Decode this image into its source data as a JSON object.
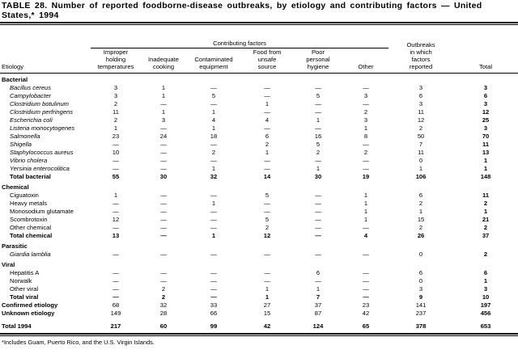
{
  "title": "TABLE 28. Number of reported foodborne-disease outbreaks, by etiology and contributing factors — United States,* 1994",
  "header": {
    "group_label": "Contributing factors",
    "etiology": "Etiology",
    "columns": [
      [
        "Improper",
        "holding",
        "temperatures"
      ],
      [
        "",
        "Inadequate",
        "cooking"
      ],
      [
        "",
        "Contaminated",
        "equipment"
      ],
      [
        "Food from",
        "unsafe",
        "source"
      ],
      [
        "Poor",
        "personal",
        "hygiene"
      ],
      [
        "",
        "",
        "Other"
      ],
      [
        "in which",
        "factors",
        "reported"
      ],
      [
        "",
        "",
        "Total"
      ]
    ],
    "outbreaks_top": "Outbreaks"
  },
  "rows": [
    {
      "label": "Bacterial",
      "type": "section",
      "values": []
    },
    {
      "label": "Bacillus cereus",
      "type": "italic",
      "values": [
        "3",
        "1",
        "—",
        "—",
        "—",
        "—",
        "3",
        "3"
      ]
    },
    {
      "label": "Campylobacter",
      "type": "italic",
      "values": [
        "3",
        "1",
        "5",
        "—",
        "5",
        "3",
        "6",
        "6"
      ]
    },
    {
      "label": "Clostridium botulinum",
      "type": "italic",
      "values": [
        "2",
        "—",
        "—",
        "1",
        "—",
        "—",
        "3",
        "3"
      ]
    },
    {
      "label": "Clostridium perfringens",
      "type": "italic",
      "values": [
        "11",
        "1",
        "1",
        "—",
        "—",
        "2",
        "11",
        "12"
      ]
    },
    {
      "label": "Escherichia coli",
      "type": "italic",
      "values": [
        "2",
        "3",
        "4",
        "4",
        "1",
        "3",
        "12",
        "25"
      ]
    },
    {
      "label": "Listeria monocytogenes",
      "type": "italic",
      "values": [
        "1",
        "—",
        "1",
        "—",
        "—",
        "1",
        "2",
        "3"
      ]
    },
    {
      "label": "Salmonella",
      "type": "italic",
      "values": [
        "23",
        "24",
        "18",
        "6",
        "16",
        "8",
        "50",
        "70"
      ]
    },
    {
      "label": "Shigella",
      "type": "italic",
      "values": [
        "—",
        "—",
        "—",
        "2",
        "5",
        "—",
        "7",
        "11"
      ]
    },
    {
      "label": "Staphylococcus aureus",
      "type": "italic",
      "values": [
        "10",
        "—",
        "2",
        "1",
        "2",
        "2",
        "11",
        "13"
      ]
    },
    {
      "label": "Vibrio cholera",
      "type": "italic",
      "values": [
        "—",
        "—",
        "—",
        "—",
        "—",
        "—",
        "0",
        "1"
      ]
    },
    {
      "label": "Yersinia enterocolitica",
      "type": "italic",
      "values": [
        "—",
        "—",
        "1",
        "—",
        "1",
        "—",
        "1",
        "1"
      ]
    },
    {
      "label": "Total bacterial",
      "type": "total",
      "values": [
        "55",
        "30",
        "32",
        "14",
        "30",
        "19",
        "106",
        "148"
      ]
    },
    {
      "label": "Chemical",
      "type": "section",
      "values": []
    },
    {
      "label": "Ciguatoxin",
      "type": "item",
      "values": [
        "1",
        "—",
        "—",
        "5",
        "—",
        "1",
        "6",
        "11"
      ]
    },
    {
      "label": "Heavy metals",
      "type": "item",
      "values": [
        "—",
        "—",
        "1",
        "—",
        "—",
        "1",
        "2",
        "2"
      ]
    },
    {
      "label": "Monosodium glutamate",
      "type": "item",
      "values": [
        "—",
        "—",
        "—",
        "—",
        "—",
        "1",
        "1",
        "1"
      ]
    },
    {
      "label": "Scombrotoxin",
      "type": "item",
      "values": [
        "12",
        "—",
        "—",
        "5",
        "—",
        "1",
        "15",
        "21"
      ]
    },
    {
      "label": "Other chemical",
      "type": "item",
      "values": [
        "—",
        "—",
        "—",
        "2",
        "—",
        "—",
        "2",
        "2"
      ]
    },
    {
      "label": "Total chemical",
      "type": "total",
      "values": [
        "13",
        "—",
        "1",
        "12",
        "—",
        "4",
        "26",
        "37"
      ]
    },
    {
      "label": "Parasitic",
      "type": "section",
      "values": []
    },
    {
      "label": "Giardia lamblia",
      "type": "italic",
      "values": [
        "—",
        "—",
        "—",
        "—",
        "—",
        "—",
        "0",
        "2"
      ]
    },
    {
      "label": "Viral",
      "type": "section",
      "values": []
    },
    {
      "label": "Hepatitis A",
      "type": "item",
      "values": [
        "—",
        "—",
        "—",
        "—",
        "6",
        "—",
        "6",
        "6"
      ]
    },
    {
      "label": "Norwalk",
      "type": "item",
      "values": [
        "—",
        "—",
        "—",
        "—",
        "—",
        "—",
        "0",
        "1"
      ]
    },
    {
      "label": "Other viral",
      "type": "item",
      "values": [
        "—",
        "2",
        "—",
        "1",
        "1",
        "—",
        "3",
        "3"
      ]
    },
    {
      "label": "Total viral",
      "type": "total",
      "values": [
        "—",
        "2",
        "—",
        "1",
        "7",
        "—",
        "9",
        "10"
      ]
    },
    {
      "label": "Confirmed etiology",
      "type": "summary",
      "values": [
        "68",
        "32",
        "33",
        "27",
        "37",
        "23",
        "141",
        "197"
      ]
    },
    {
      "label": "Unknown etiology",
      "type": "summary",
      "values": [
        "149",
        "28",
        "66",
        "15",
        "87",
        "42",
        "237",
        "456"
      ]
    },
    {
      "label": "Total 1994",
      "type": "grand",
      "values": [
        "217",
        "60",
        "99",
        "42",
        "124",
        "65",
        "378",
        "653"
      ]
    }
  ],
  "footnote": "*Includes Guam, Puerto Rico, and the U.S. Virgin Islands."
}
